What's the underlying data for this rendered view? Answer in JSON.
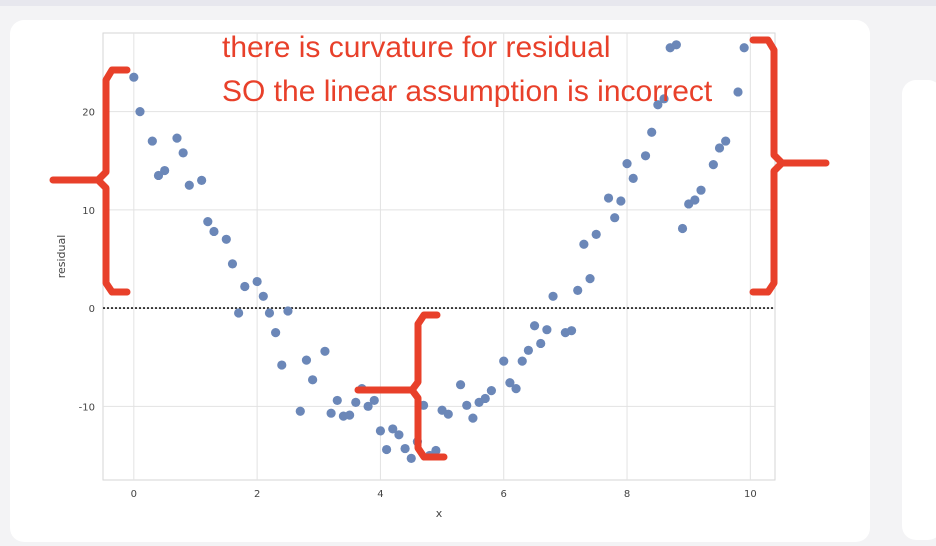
{
  "chart_data": {
    "type": "scatter",
    "xlabel": "x",
    "ylabel": "residual",
    "xlim": [
      -0.5,
      10.4
    ],
    "ylim": [
      -17.5,
      28
    ],
    "xticks": [
      0,
      2,
      4,
      6,
      8,
      10
    ],
    "yticks": [
      -10,
      0,
      10,
      20
    ],
    "grid": true,
    "reference_line": {
      "y": 0,
      "style": "dotted"
    },
    "point_color": "#6b87b8",
    "annotation_color": "#e8402a",
    "x": [
      0.0,
      0.1,
      0.3,
      0.4,
      0.5,
      0.7,
      0.8,
      0.9,
      1.1,
      1.2,
      1.3,
      1.5,
      1.6,
      1.7,
      1.8,
      2.0,
      2.1,
      2.2,
      2.3,
      2.4,
      2.5,
      2.7,
      2.8,
      2.9,
      3.1,
      3.2,
      3.3,
      3.4,
      3.5,
      3.6,
      3.7,
      3.8,
      3.9,
      4.0,
      4.1,
      4.2,
      4.3,
      4.4,
      4.5,
      4.6,
      4.7,
      4.8,
      4.9,
      5.0,
      5.1,
      5.3,
      5.4,
      5.5,
      5.6,
      5.7,
      5.8,
      6.0,
      6.1,
      6.2,
      6.3,
      6.4,
      6.5,
      6.6,
      6.7,
      6.8,
      7.0,
      7.1,
      7.2,
      7.3,
      7.4,
      7.5,
      7.7,
      7.8,
      7.9,
      8.0,
      8.1,
      8.3,
      8.4,
      8.5,
      8.6,
      8.7,
      8.8,
      8.9,
      9.0,
      9.1,
      9.2,
      9.4,
      9.5,
      9.6,
      9.8,
      9.9
    ],
    "y": [
      23.5,
      20.0,
      17.0,
      13.5,
      14.0,
      17.3,
      15.8,
      12.5,
      13.0,
      8.8,
      7.8,
      7.0,
      4.5,
      -0.5,
      2.2,
      2.7,
      1.2,
      -0.5,
      -2.5,
      -5.8,
      -0.3,
      -10.5,
      -5.3,
      -7.3,
      -4.4,
      -10.7,
      -9.4,
      -11.0,
      -10.9,
      -9.6,
      -8.2,
      -10.0,
      -9.4,
      -12.5,
      -14.4,
      -12.3,
      -12.9,
      -14.3,
      -15.3,
      -13.6,
      -9.9,
      -15.0,
      -14.5,
      -10.4,
      -10.8,
      -7.8,
      -9.9,
      -11.2,
      -9.6,
      -9.2,
      -8.4,
      -5.4,
      -7.6,
      -8.2,
      -5.4,
      -4.3,
      -1.8,
      -3.6,
      -2.2,
      1.2,
      -2.5,
      -2.3,
      1.8,
      6.5,
      3.0,
      7.5,
      11.2,
      9.2,
      10.9,
      14.7,
      13.2,
      15.5,
      17.9,
      20.7,
      21.3,
      26.5,
      26.8,
      8.1,
      10.6,
      11.0,
      12.0,
      14.6,
      16.3,
      17.0,
      22.0,
      26.5
    ]
  },
  "annotation": {
    "line1": "there is curvature for residual",
    "line2": "SO the linear assumption is incorrect"
  }
}
